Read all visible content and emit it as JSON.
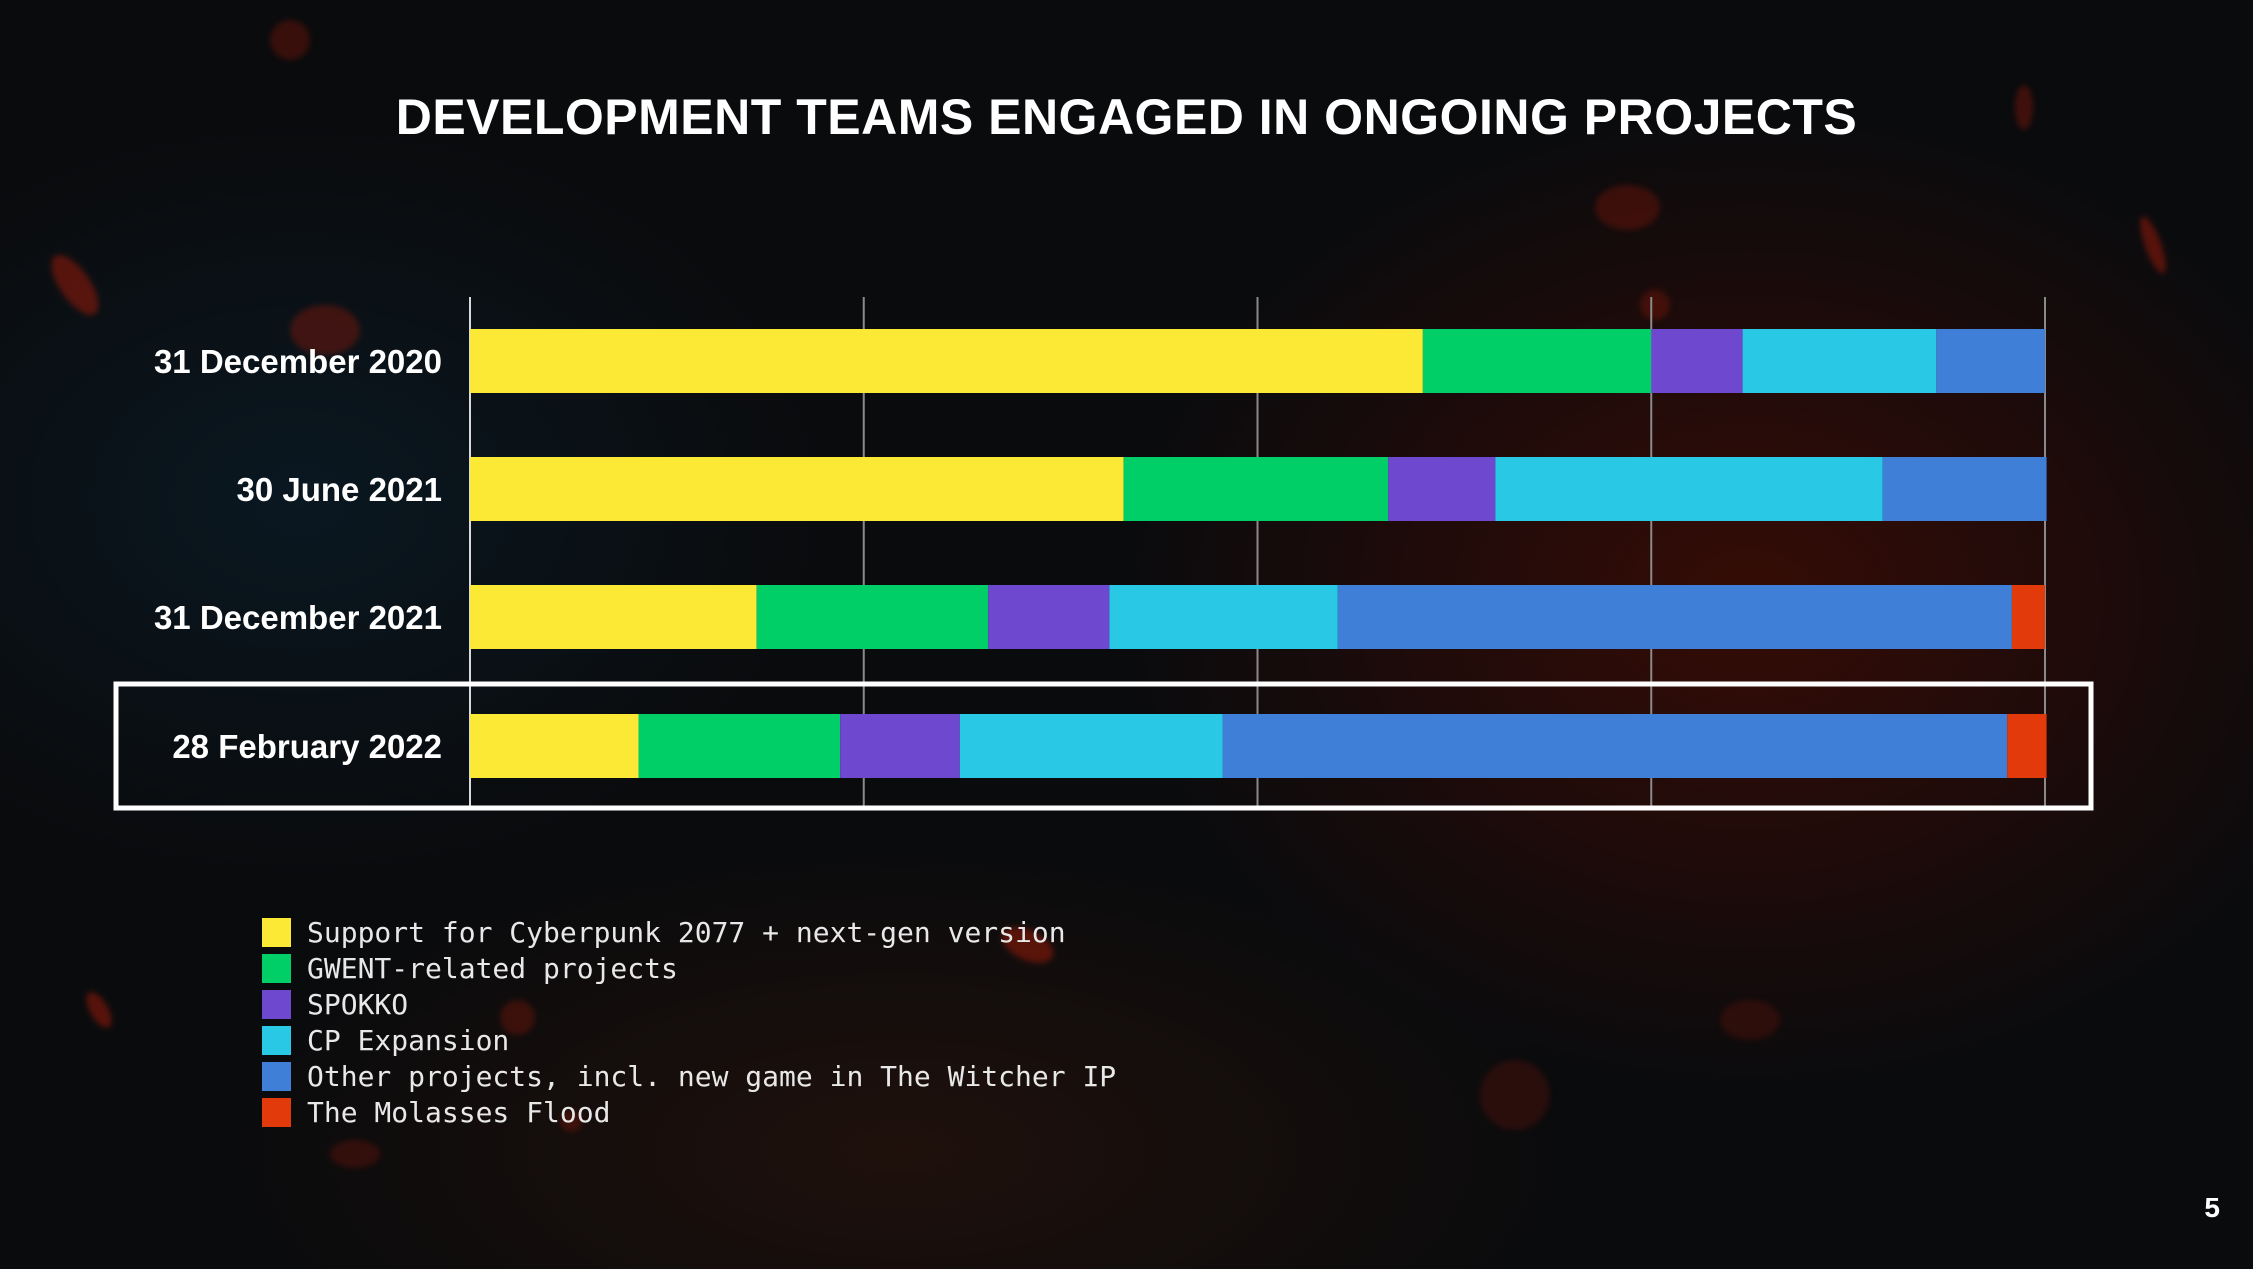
{
  "slide": {
    "title": "DEVELOPMENT TEAMS ENGAGED IN ONGOING PROJECTS",
    "page_number": "5"
  },
  "chart_data": {
    "type": "bar",
    "orientation": "horizontal",
    "stacking": "percent",
    "title": "DEVELOPMENT TEAMS ENGAGED IN ONGOING PROJECTS",
    "xlabel": "",
    "ylabel": "",
    "xlim": [
      0,
      100
    ],
    "grid": true,
    "legend_position": "bottom-left",
    "highlighted_category": "28 February 2022",
    "categories": [
      "31 December 2020",
      "30 June 2021",
      "31 December 2021",
      "28 February 2022"
    ],
    "series": [
      {
        "name": "Support for Cyberpunk 2077 + next-gen version",
        "color": "#fbe935",
        "values": [
          60.5,
          41.5,
          18.2,
          10.7
        ]
      },
      {
        "name": "GWENT-related projects",
        "color": "#00cf68",
        "values": [
          14.5,
          16.8,
          14.7,
          12.8
        ]
      },
      {
        "name": "SPOKKO",
        "color": "#6e48cf",
        "values": [
          5.8,
          6.8,
          7.7,
          7.6
        ]
      },
      {
        "name": "CP Expansion",
        "color": "#29c9e6",
        "values": [
          12.3,
          24.6,
          14.5,
          16.7
        ]
      },
      {
        "name": "Other projects, incl. new game in The Witcher IP",
        "color": "#3f7fd8",
        "values": [
          6.9,
          10.4,
          42.8,
          49.8
        ]
      },
      {
        "name": "The Molasses Flood",
        "color": "#e33a0c",
        "values": [
          0,
          0,
          2.1,
          2.5
        ]
      }
    ]
  }
}
